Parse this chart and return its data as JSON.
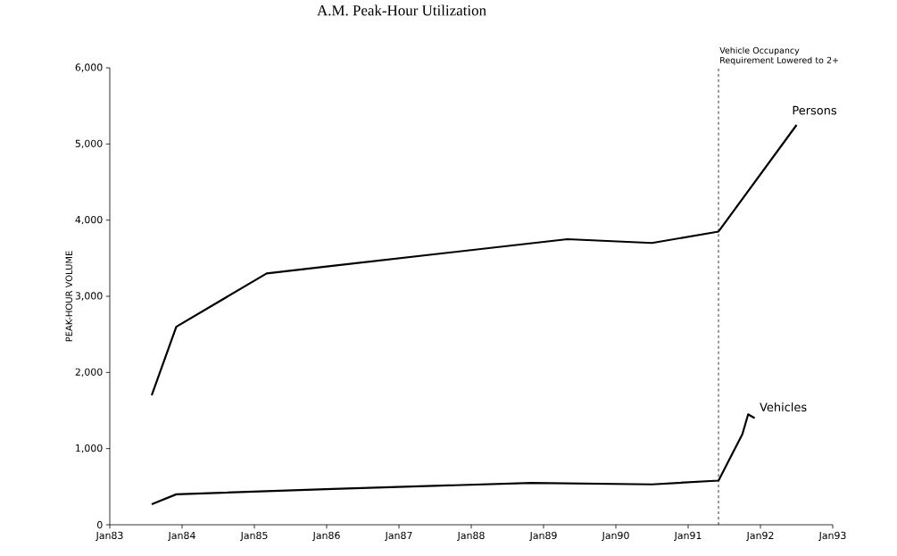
{
  "chart_data": {
    "type": "line",
    "title": "A.M. Peak-Hour Utilization",
    "ylabel": "PEAK-HOUR VOLUME",
    "xlim": [
      "1983-01",
      "1993-01"
    ],
    "xticks": [
      {
        "value": "1983-01",
        "label": "Jan83"
      },
      {
        "value": "1984-01",
        "label": "Jan84"
      },
      {
        "value": "1985-01",
        "label": "Jan85"
      },
      {
        "value": "1986-01",
        "label": "Jan86"
      },
      {
        "value": "1987-01",
        "label": "Jan87"
      },
      {
        "value": "1988-01",
        "label": "Jan88"
      },
      {
        "value": "1989-01",
        "label": "Jan89"
      },
      {
        "value": "1990-01",
        "label": "Jan90"
      },
      {
        "value": "1991-01",
        "label": "Jan91"
      },
      {
        "value": "1992-01",
        "label": "Jan92"
      },
      {
        "value": "1993-01",
        "label": "Jan93"
      }
    ],
    "ylim": [
      0,
      6000
    ],
    "yticks": [
      0,
      {
        "value": 1000,
        "label": "1,000"
      },
      {
        "value": 2000,
        "label": "2,000"
      },
      {
        "value": 3000,
        "label": "3,000"
      },
      {
        "value": 4000,
        "label": "4,000"
      },
      {
        "value": 5000,
        "label": "5,000"
      },
      {
        "value": 6000,
        "label": "6,000"
      }
    ],
    "series": [
      {
        "name": "Persons",
        "color": "#000000",
        "x": [
          "1983-08",
          "1983-12",
          "1985-03",
          "1986-02",
          "1989-05",
          "1990-07",
          "1991-06",
          "1992-07"
        ],
        "values": [
          1700,
          2600,
          3300,
          3400,
          3750,
          3700,
          3850,
          5250
        ]
      },
      {
        "name": "Vehicles",
        "color": "#000000",
        "x": [
          "1983-08",
          "1983-12",
          "1986-02",
          "1988-11",
          "1990-07",
          "1991-06",
          "1991-10",
          "1991-11",
          "1991-12"
        ],
        "values": [
          270,
          400,
          470,
          550,
          530,
          580,
          1190,
          1450,
          1400
        ]
      }
    ],
    "ref_lines": [
      {
        "axis": "x",
        "value": "1991-06",
        "label": "Vehicle Occupancy Requirement Lowered to 2+",
        "color": "#000000",
        "line_style": "dashed"
      }
    ],
    "line_style": "solid"
  }
}
